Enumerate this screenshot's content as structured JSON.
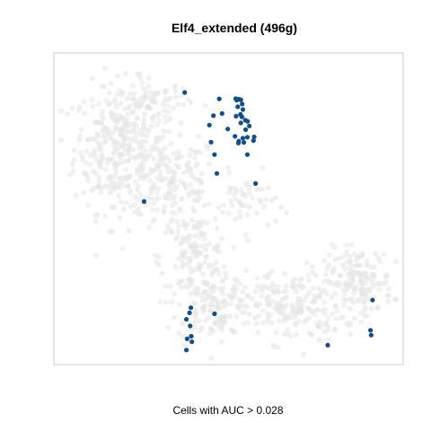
{
  "chart_data": {
    "type": "scatter",
    "title": "Elf4_extended (496g)",
    "xlabel": "Cells with AUC > 0.028",
    "ylabel": "",
    "xlim": [
      0,
      100
    ],
    "ylim": [
      0,
      100
    ],
    "grid": false,
    "legend": "none",
    "axes_visible": false,
    "colors": {
      "background_cells": "#e6e6e6",
      "highlighted_cells": "#124e88",
      "panel_border": "#cccccc"
    },
    "series": [
      {
        "role": "background",
        "clusters": [
          {
            "cx": 18,
            "cy": 70,
            "rx": 12,
            "ry": 19,
            "n": 320
          },
          {
            "cx": 34,
            "cy": 58,
            "rx": 12,
            "ry": 15,
            "n": 160
          },
          {
            "cx": 40,
            "cy": 34,
            "rx": 9,
            "ry": 13,
            "n": 140
          },
          {
            "cx": 46,
            "cy": 18,
            "rx": 10,
            "ry": 11,
            "n": 130
          },
          {
            "cx": 68,
            "cy": 18,
            "rx": 14,
            "ry": 11,
            "n": 200
          },
          {
            "cx": 88,
            "cy": 26,
            "rx": 9,
            "ry": 10,
            "n": 160
          },
          {
            "cx": 28,
            "cy": 85,
            "rx": 10,
            "ry": 6,
            "n": 70
          },
          {
            "cx": 55,
            "cy": 52,
            "rx": 8,
            "ry": 8,
            "n": 50
          }
        ]
      },
      {
        "role": "highlighted",
        "x": [
          37.2,
          47.3,
          52.1,
          52.4,
          53.0,
          53.6,
          54.0,
          52.7,
          53.5,
          54.2,
          53.9,
          52.2,
          53.6,
          54.9,
          55.6,
          56.1,
          55.0,
          54.2,
          53.0,
          51.9,
          52.9,
          54.5,
          55.5,
          57.3,
          57.5,
          48.1,
          45.6,
          44.4,
          49.8,
          44.9,
          45.9,
          55.5,
          46.6,
          57.9,
          25.3,
          39.0,
          38.6,
          37.7,
          38.8,
          39.1,
          37.9,
          39.3,
          37.7,
          45.9,
          79.0,
          92.1,
          91.5,
          91.7
        ],
        "y": [
          88.2,
          86.1,
          86.2,
          85.7,
          86.0,
          85.8,
          84.4,
          83.5,
          81.0,
          82.6,
          80.2,
          80.4,
          78.2,
          79.1,
          78.7,
          77.2,
          76.0,
          73.2,
          72.2,
          73.8,
          71.6,
          71.8,
          73.5,
          72.4,
          73.6,
          81.3,
          80.6,
          77.5,
          76.2,
          71.9,
          67.8,
          67.8,
          61.6,
          58.3,
          52.4,
          17.5,
          15.8,
          13.7,
          11.5,
          8.1,
          7.3,
          6.3,
          3.6,
          15.5,
          5.2,
          20.0,
          10.1,
          8.5
        ]
      }
    ]
  }
}
